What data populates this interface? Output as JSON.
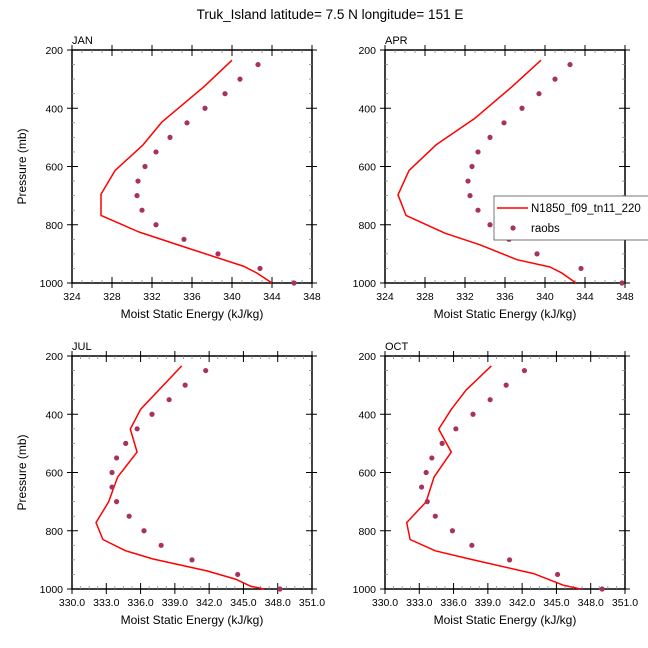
{
  "title": "Truk_Island  latitude= 7.5 N longitude= 151 E",
  "legend": {
    "model_label": "N1850_f09_tn11_220",
    "obs_label": "raobs",
    "placement": "right-middle of APR panel"
  },
  "colors": {
    "model": "#ff0000",
    "obs": "#a8325e"
  },
  "chart_data": [
    {
      "type": "line",
      "panel": "JAN",
      "xlabel": "Moist Static Energy (kJ/kg)",
      "ylabel": "Pressure (mb)",
      "xlim": [
        324,
        348
      ],
      "ylim": [
        1000,
        200
      ],
      "y_reversed": true,
      "xticks": [
        "324",
        "328",
        "332",
        "336",
        "340",
        "344",
        "348"
      ],
      "xtick_values": [
        324,
        328,
        332,
        336,
        340,
        344,
        348
      ],
      "yticks": [
        "200",
        "400",
        "600",
        "800",
        "1000"
      ],
      "ytick_values": [
        200,
        400,
        600,
        800,
        1000
      ],
      "series": [
        {
          "name": "N1850_f09_tn11_220",
          "style": "line",
          "x": [
            340.0,
            337.2,
            333.0,
            331.1,
            328.3,
            326.9,
            326.9,
            330.7,
            335.4,
            341.2,
            342.5,
            344.0
          ],
          "y": [
            235,
            326,
            447,
            526,
            614,
            695,
            768,
            825,
            878,
            943,
            966,
            1000
          ]
        },
        {
          "name": "raobs",
          "style": "markers",
          "x": [
            342.6,
            340.8,
            339.3,
            337.3,
            335.5,
            333.8,
            332.4,
            331.3,
            330.6,
            330.5,
            331.0,
            332.4,
            335.2,
            338.6,
            342.8,
            346.2
          ],
          "y": [
            250,
            300,
            350,
            400,
            450,
            500,
            550,
            600,
            650,
            700,
            750,
            800,
            850,
            900,
            950,
            1000
          ]
        }
      ]
    },
    {
      "type": "line",
      "panel": "APR",
      "xlabel": "Moist Static Energy (kJ/kg)",
      "ylabel": "",
      "xlim": [
        324,
        348
      ],
      "ylim": [
        1000,
        200
      ],
      "y_reversed": true,
      "xticks": [
        "324",
        "328",
        "332",
        "336",
        "340",
        "344",
        "348"
      ],
      "xtick_values": [
        324,
        328,
        332,
        336,
        340,
        344,
        348
      ],
      "yticks": [
        "200",
        "400",
        "600",
        "800",
        "1000"
      ],
      "ytick_values": [
        200,
        400,
        600,
        800,
        1000
      ],
      "series": [
        {
          "name": "N1850_f09_tn11_220",
          "style": "line",
          "x": [
            339.6,
            336.7,
            333.0,
            329.1,
            326.4,
            325.3,
            326.1,
            330.0,
            333.5,
            337.2,
            340.5,
            341.7,
            343.1
          ],
          "y": [
            235,
            326,
            434,
            526,
            614,
            697,
            768,
            829,
            869,
            920,
            945,
            966,
            1000
          ]
        },
        {
          "name": "raobs",
          "style": "markers",
          "x": [
            342.5,
            341.0,
            339.4,
            337.7,
            335.9,
            334.5,
            333.3,
            332.7,
            332.3,
            332.5,
            333.3,
            334.5,
            336.4,
            339.2,
            343.6,
            347.7
          ],
          "y": [
            250,
            300,
            350,
            400,
            450,
            500,
            550,
            600,
            650,
            700,
            750,
            800,
            850,
            900,
            950,
            1000
          ]
        }
      ]
    },
    {
      "type": "line",
      "panel": "JUL",
      "xlabel": "Moist Static Energy (kJ/kg)",
      "ylabel": "Pressure (mb)",
      "xlim": [
        330,
        351
      ],
      "ylim": [
        1000,
        200
      ],
      "y_reversed": true,
      "xticks": [
        "330.0",
        "333.0",
        "336.0",
        "339.0",
        "342.0",
        "345.0",
        "348.0",
        "351.0"
      ],
      "xtick_values": [
        330,
        333,
        336,
        339,
        342,
        345,
        348,
        351
      ],
      "yticks": [
        "200",
        "400",
        "600",
        "800",
        "1000"
      ],
      "ytick_values": [
        200,
        400,
        600,
        800,
        1000
      ],
      "series": [
        {
          "name": "N1850_f09_tn11_220",
          "style": "line",
          "x": [
            339.6,
            336.0,
            335.1,
            335.7,
            334.0,
            333.2,
            332.1,
            332.7,
            334.7,
            337.1,
            341.8,
            344.3,
            345.6,
            346.8
          ],
          "y": [
            234,
            383,
            451,
            530,
            615,
            701,
            772,
            830,
            869,
            897,
            938,
            966,
            990,
            1000
          ]
        },
        {
          "name": "raobs",
          "style": "markers",
          "x": [
            341.7,
            339.9,
            338.5,
            337.0,
            335.7,
            334.7,
            333.9,
            333.5,
            333.5,
            333.9,
            335.0,
            336.3,
            337.8,
            340.5,
            344.5,
            348.2
          ],
          "y": [
            250,
            300,
            350,
            400,
            450,
            500,
            550,
            600,
            650,
            700,
            750,
            800,
            850,
            900,
            950,
            1000
          ]
        }
      ]
    },
    {
      "type": "line",
      "panel": "OCT",
      "xlabel": "Moist Static Energy (kJ/kg)",
      "ylabel": "",
      "xlim": [
        330,
        351
      ],
      "ylim": [
        1000,
        200
      ],
      "y_reversed": true,
      "xticks": [
        "330.0",
        "333.0",
        "336.0",
        "339.0",
        "342.0",
        "345.0",
        "348.0",
        "351.0"
      ],
      "xtick_values": [
        330,
        333,
        336,
        339,
        342,
        345,
        348,
        351
      ],
      "yticks": [
        "200",
        "400",
        "600",
        "800",
        "1000"
      ],
      "ytick_values": [
        200,
        400,
        600,
        800,
        1000
      ],
      "series": [
        {
          "name": "N1850_f09_tn11_220",
          "style": "line",
          "x": [
            339.3,
            337.1,
            335.8,
            334.7,
            335.8,
            334.3,
            333.6,
            331.9,
            332.2,
            334.4,
            337.4,
            343.0,
            345.6,
            347.1
          ],
          "y": [
            234,
            317,
            383,
            451,
            530,
            615,
            701,
            772,
            830,
            869,
            897,
            947,
            987,
            1000
          ]
        },
        {
          "name": "raobs",
          "style": "markers",
          "x": [
            342.2,
            340.6,
            339.2,
            337.7,
            336.2,
            335.0,
            334.1,
            333.6,
            333.2,
            333.7,
            334.4,
            335.9,
            337.6,
            340.9,
            345.1,
            349.0
          ],
          "y": [
            250,
            300,
            350,
            400,
            450,
            500,
            550,
            600,
            650,
            700,
            750,
            800,
            850,
            900,
            950,
            1000
          ]
        }
      ]
    }
  ]
}
